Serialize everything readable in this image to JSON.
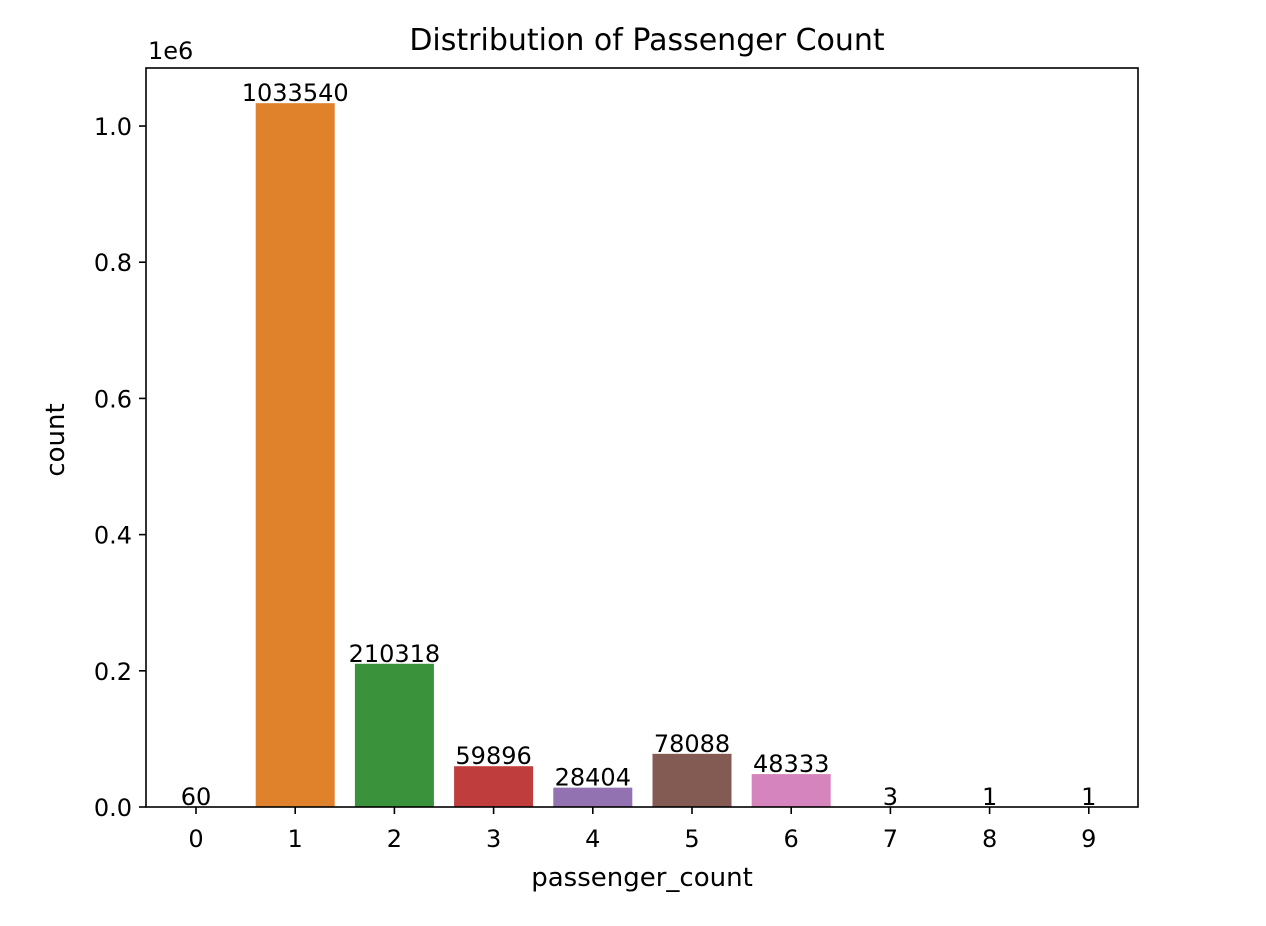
{
  "chart_data": {
    "type": "bar",
    "title": "Distribution of Passenger Count",
    "xlabel": "passenger_count",
    "ylabel": "count",
    "y_offset_label": "1e6",
    "categories": [
      "0",
      "1",
      "2",
      "3",
      "4",
      "5",
      "6",
      "7",
      "8",
      "9"
    ],
    "values": [
      60,
      1033540,
      210318,
      59896,
      28404,
      78088,
      48333,
      3,
      1,
      1
    ],
    "data_labels": [
      "60",
      "1033540",
      "210318",
      "59896",
      "28404",
      "78088",
      "48333",
      "3",
      "1",
      "1"
    ],
    "colors": [
      "#3a75af",
      "#e0812c",
      "#3a923a",
      "#c03d3e",
      "#9372b2",
      "#845b53",
      "#d684bd",
      "#7f7f7f",
      "#a9aa35",
      "#2ebdcd"
    ],
    "ylim": [
      0,
      1085217
    ],
    "yticks": [
      0.0,
      0.2,
      0.4,
      0.6,
      0.8,
      1.0
    ],
    "ytick_labels": [
      "0.0",
      "0.2",
      "0.4",
      "0.6",
      "0.8",
      "1.0"
    ],
    "y_tick_scale": 1000000,
    "grid": false,
    "legend": "none"
  }
}
